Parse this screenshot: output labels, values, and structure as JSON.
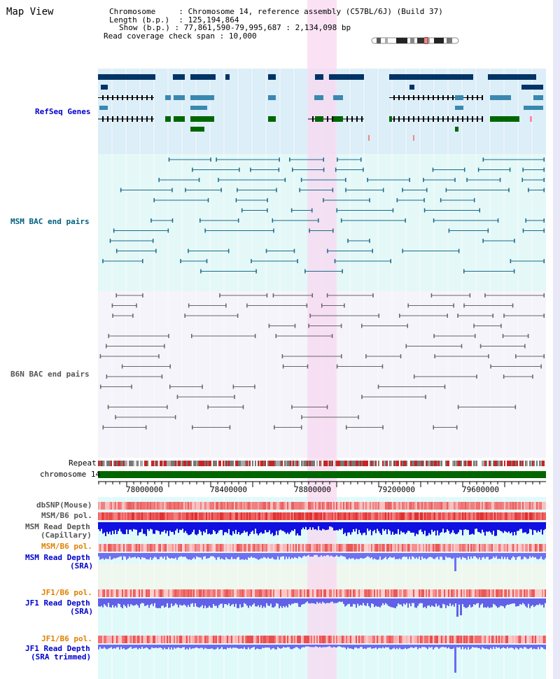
{
  "title": "Map View",
  "info": {
    "chromosome_key": "Chromosome",
    "chromosome_val": "Chromosome 14, reference assembly (C57BL/6J) (Build 37)",
    "length_key": "Length (b.p.)",
    "length_val": "125,194,864",
    "show_key": "Show (b.p.)",
    "show_val": "77,861,590-79,995,687 : 2,134,098 bp",
    "coverage_key": "Read coverage check span",
    "coverage_val": "10,000"
  },
  "tracks": {
    "refseq": "RefSeq Genes",
    "msm_bac": "MSM BAC end pairs",
    "b6n_bac": "B6N BAC end pairs",
    "repeat": "Repeat",
    "chromosome": "chromosome 14",
    "dbsnp": "dbSNP(Mouse)",
    "msm_b6_pol_1": "MSM/B6 pol.",
    "msm_depth_cap_1": "MSM Read Depth",
    "msm_depth_cap_2": "(Capillary)",
    "msm_b6_pol_2": "MSM/B6 pol.",
    "msm_depth_sra_1": "MSM Read Depth",
    "msm_depth_sra_2": "(SRA)",
    "jf1_b6_pol_1": "JF1/B6 pol.",
    "jf1_depth_sra_1": "JF1 Read Depth",
    "jf1_depth_sra_2": "(SRA)",
    "jf1_b6_pol_2": "JF1/B6 pol.",
    "jf1_depth_trim_1": "JF1 Read Depth",
    "jf1_depth_trim_2": "(SRA trimmed)"
  },
  "axis_ticks": [
    "78000000",
    "78400000",
    "78800000",
    "79200000",
    "79600000"
  ],
  "colors": {
    "refseq_bg": "#dceef8",
    "bac_bg": "#e4f8f8",
    "highlight": "#f8d8f0",
    "navy": "#003366",
    "green": "#006600",
    "teal": "#1a6a8a",
    "gray": "#666666"
  }
}
